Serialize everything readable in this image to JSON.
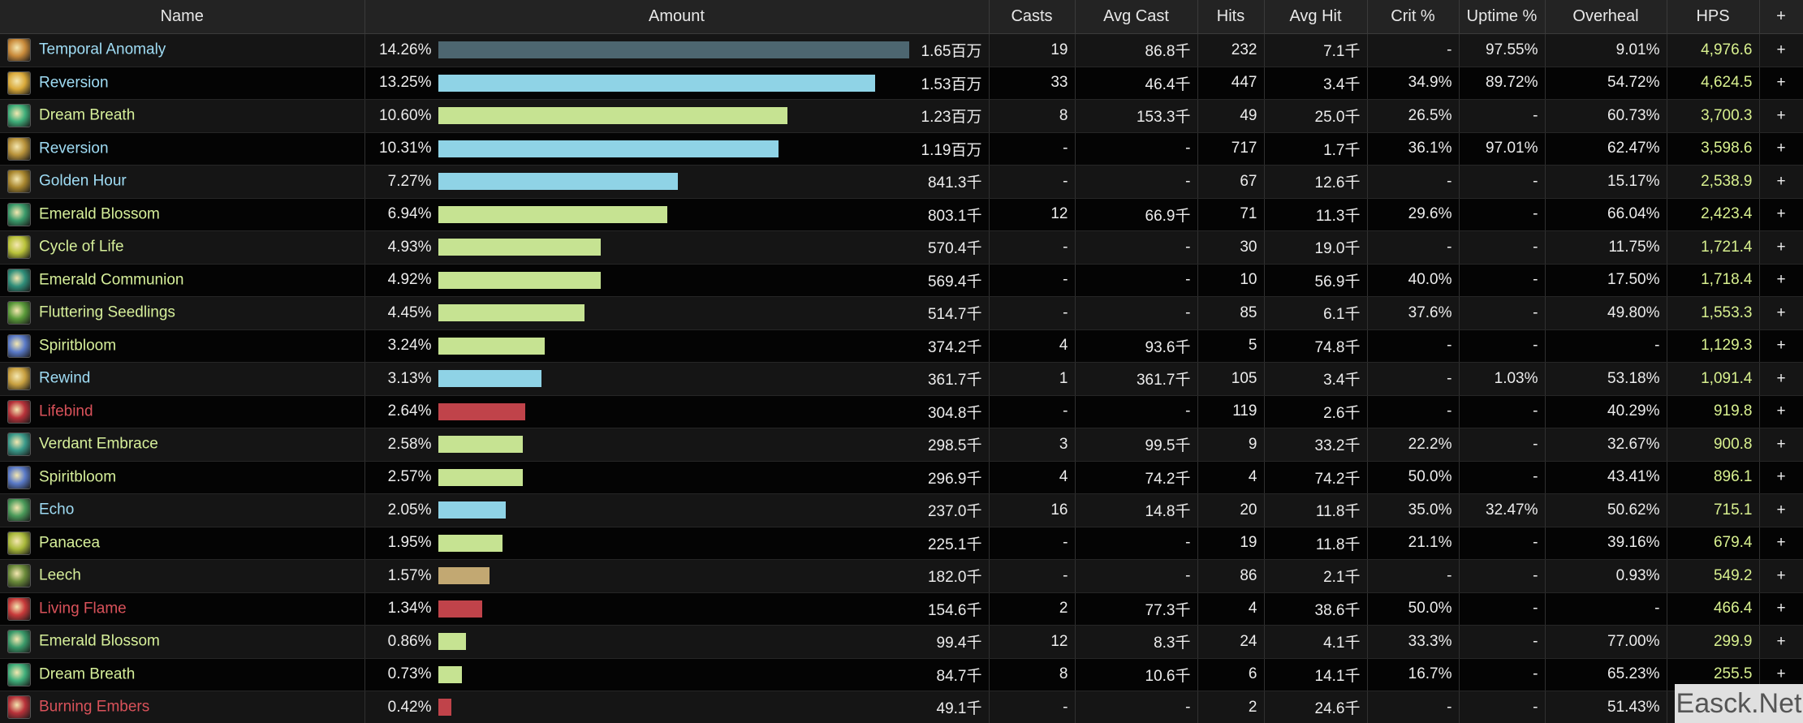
{
  "headers": {
    "name": "Name",
    "amount": "Amount",
    "casts": "Casts",
    "avg_cast": "Avg Cast",
    "hits": "Hits",
    "avg_hit": "Avg Hit",
    "crit": "Crit %",
    "uptime": "Uptime %",
    "overheal": "Overheal",
    "hps": "HPS",
    "add": "+"
  },
  "watermark": "Easck.Net",
  "colors": {
    "blue_name": "#9fdcf4",
    "green_name": "#d6ef9a",
    "red_name": "#d9525a",
    "bar_slate": "#4d6670",
    "bar_blue": "#8fd3e6",
    "bar_green": "#c6e392",
    "bar_red": "#c0434a",
    "bar_tan": "#c2a872",
    "hps_text": "#d8f08f"
  },
  "rows": [
    {
      "name": "Temporal Anomaly",
      "icon": "temporal-anomaly-icon",
      "icon_color": "#c98a3a",
      "name_color": "#9fdcf4",
      "bar_color": "#4d6670",
      "pct": "14.26%",
      "fraction": 1.0,
      "amount": "1.65百万",
      "casts": "19",
      "avg_cast": "86.8千",
      "hits": "232",
      "avg_hit": "7.1千",
      "crit": "-",
      "uptime": "97.55%",
      "overheal": "9.01%",
      "hps": "4,976.6",
      "plus": "+"
    },
    {
      "name": "Reversion",
      "icon": "reversion-icon",
      "icon_color": "#d9a93a",
      "name_color": "#9fdcf4",
      "bar_color": "#8fd3e6",
      "pct": "13.25%",
      "fraction": 0.929,
      "amount": "1.53百万",
      "casts": "33",
      "avg_cast": "46.4千",
      "hits": "447",
      "avg_hit": "3.4千",
      "crit": "34.9%",
      "uptime": "89.72%",
      "overheal": "54.72%",
      "hps": "4,624.5",
      "plus": "+"
    },
    {
      "name": "Dream Breath",
      "icon": "dream-breath-icon",
      "icon_color": "#3fae7a",
      "name_color": "#d6ef9a",
      "bar_color": "#c6e392",
      "pct": "10.60%",
      "fraction": 0.743,
      "amount": "1.23百万",
      "casts": "8",
      "avg_cast": "153.3千",
      "hits": "49",
      "avg_hit": "25.0千",
      "crit": "26.5%",
      "uptime": "-",
      "overheal": "60.73%",
      "hps": "3,700.3",
      "plus": "+"
    },
    {
      "name": "Reversion",
      "icon": "reversion-icon",
      "icon_color": "#b8923a",
      "name_color": "#9fdcf4",
      "bar_color": "#8fd3e6",
      "pct": "10.31%",
      "fraction": 0.723,
      "amount": "1.19百万",
      "casts": "-",
      "avg_cast": "-",
      "hits": "717",
      "avg_hit": "1.7千",
      "crit": "36.1%",
      "uptime": "97.01%",
      "overheal": "62.47%",
      "hps": "3,598.6",
      "plus": "+"
    },
    {
      "name": "Golden Hour",
      "icon": "golden-hour-icon",
      "icon_color": "#a8862e",
      "name_color": "#9fdcf4",
      "bar_color": "#8fd3e6",
      "pct": "7.27%",
      "fraction": 0.51,
      "amount": "841.3千",
      "casts": "-",
      "avg_cast": "-",
      "hits": "67",
      "avg_hit": "12.6千",
      "crit": "-",
      "uptime": "-",
      "overheal": "15.17%",
      "hps": "2,538.9",
      "plus": "+"
    },
    {
      "name": "Emerald Blossom",
      "icon": "emerald-blossom-icon",
      "icon_color": "#3a9a6a",
      "name_color": "#d6ef9a",
      "bar_color": "#c6e392",
      "pct": "6.94%",
      "fraction": 0.487,
      "amount": "803.1千",
      "casts": "12",
      "avg_cast": "66.9千",
      "hits": "71",
      "avg_hit": "11.3千",
      "crit": "29.6%",
      "uptime": "-",
      "overheal": "66.04%",
      "hps": "2,423.4",
      "plus": "+"
    },
    {
      "name": "Cycle of Life",
      "icon": "cycle-of-life-icon",
      "icon_color": "#b9c23a",
      "name_color": "#d6ef9a",
      "bar_color": "#c6e392",
      "pct": "4.93%",
      "fraction": 0.346,
      "amount": "570.4千",
      "casts": "-",
      "avg_cast": "-",
      "hits": "30",
      "avg_hit": "19.0千",
      "crit": "-",
      "uptime": "-",
      "overheal": "11.75%",
      "hps": "1,721.4",
      "plus": "+"
    },
    {
      "name": "Emerald Communion",
      "icon": "emerald-communion-icon",
      "icon_color": "#2f8e7a",
      "name_color": "#d6ef9a",
      "bar_color": "#c6e392",
      "pct": "4.92%",
      "fraction": 0.345,
      "amount": "569.4千",
      "casts": "-",
      "avg_cast": "-",
      "hits": "10",
      "avg_hit": "56.9千",
      "crit": "40.0%",
      "uptime": "-",
      "overheal": "17.50%",
      "hps": "1,718.4",
      "plus": "+"
    },
    {
      "name": "Fluttering Seedlings",
      "icon": "fluttering-seedlings-icon",
      "icon_color": "#5a9a3a",
      "name_color": "#d6ef9a",
      "bar_color": "#c6e392",
      "pct": "4.45%",
      "fraction": 0.312,
      "amount": "514.7千",
      "casts": "-",
      "avg_cast": "-",
      "hits": "85",
      "avg_hit": "6.1千",
      "crit": "37.6%",
      "uptime": "-",
      "overheal": "49.80%",
      "hps": "1,553.3",
      "plus": "+"
    },
    {
      "name": "Spiritbloom",
      "icon": "spiritbloom-icon",
      "icon_color": "#5a7ac8",
      "name_color": "#d6ef9a",
      "bar_color": "#c6e392",
      "pct": "3.24%",
      "fraction": 0.227,
      "amount": "374.2千",
      "casts": "4",
      "avg_cast": "93.6千",
      "hits": "5",
      "avg_hit": "74.8千",
      "crit": "-",
      "uptime": "-",
      "overheal": "-",
      "hps": "1,129.3",
      "plus": "+"
    },
    {
      "name": "Rewind",
      "icon": "rewind-icon",
      "icon_color": "#c8a040",
      "name_color": "#9fdcf4",
      "bar_color": "#8fd3e6",
      "pct": "3.13%",
      "fraction": 0.219,
      "amount": "361.7千",
      "casts": "1",
      "avg_cast": "361.7千",
      "hits": "105",
      "avg_hit": "3.4千",
      "crit": "-",
      "uptime": "1.03%",
      "overheal": "53.18%",
      "hps": "1,091.4",
      "plus": "+"
    },
    {
      "name": "Lifebind",
      "icon": "lifebind-icon",
      "icon_color": "#b8323a",
      "name_color": "#d9525a",
      "bar_color": "#c0434a",
      "pct": "2.64%",
      "fraction": 0.185,
      "amount": "304.8千",
      "casts": "-",
      "avg_cast": "-",
      "hits": "119",
      "avg_hit": "2.6千",
      "crit": "-",
      "uptime": "-",
      "overheal": "40.29%",
      "hps": "919.8",
      "plus": "+"
    },
    {
      "name": "Verdant Embrace",
      "icon": "verdant-embrace-icon",
      "icon_color": "#3a9a8a",
      "name_color": "#d6ef9a",
      "bar_color": "#c6e392",
      "pct": "2.58%",
      "fraction": 0.181,
      "amount": "298.5千",
      "casts": "3",
      "avg_cast": "99.5千",
      "hits": "9",
      "avg_hit": "33.2千",
      "crit": "22.2%",
      "uptime": "-",
      "overheal": "32.67%",
      "hps": "900.8",
      "plus": "+"
    },
    {
      "name": "Spiritbloom",
      "icon": "spiritbloom-icon",
      "icon_color": "#5a7ac8",
      "name_color": "#d6ef9a",
      "bar_color": "#c6e392",
      "pct": "2.57%",
      "fraction": 0.18,
      "amount": "296.9千",
      "casts": "4",
      "avg_cast": "74.2千",
      "hits": "4",
      "avg_hit": "74.2千",
      "crit": "50.0%",
      "uptime": "-",
      "overheal": "43.41%",
      "hps": "896.1",
      "plus": "+"
    },
    {
      "name": "Echo",
      "icon": "echo-icon",
      "icon_color": "#4a9a5a",
      "name_color": "#9fdcf4",
      "bar_color": "#8fd3e6",
      "pct": "2.05%",
      "fraction": 0.144,
      "amount": "237.0千",
      "casts": "16",
      "avg_cast": "14.8千",
      "hits": "20",
      "avg_hit": "11.8千",
      "crit": "35.0%",
      "uptime": "32.47%",
      "overheal": "50.62%",
      "hps": "715.1",
      "plus": "+"
    },
    {
      "name": "Panacea",
      "icon": "panacea-icon",
      "icon_color": "#a8b83a",
      "name_color": "#d6ef9a",
      "bar_color": "#c6e392",
      "pct": "1.95%",
      "fraction": 0.137,
      "amount": "225.1千",
      "casts": "-",
      "avg_cast": "-",
      "hits": "19",
      "avg_hit": "11.8千",
      "crit": "21.1%",
      "uptime": "-",
      "overheal": "39.16%",
      "hps": "679.4",
      "plus": "+"
    },
    {
      "name": "Leech",
      "icon": "leech-icon",
      "icon_color": "#6a8a3a",
      "name_color": "#d6ef9a",
      "bar_color": "#c2a872",
      "pct": "1.57%",
      "fraction": 0.11,
      "amount": "182.0千",
      "casts": "-",
      "avg_cast": "-",
      "hits": "86",
      "avg_hit": "2.1千",
      "crit": "-",
      "uptime": "-",
      "overheal": "0.93%",
      "hps": "549.2",
      "plus": "+"
    },
    {
      "name": "Living Flame",
      "icon": "living-flame-icon",
      "icon_color": "#c83a3a",
      "name_color": "#d9525a",
      "bar_color": "#c0434a",
      "pct": "1.34%",
      "fraction": 0.094,
      "amount": "154.6千",
      "casts": "2",
      "avg_cast": "77.3千",
      "hits": "4",
      "avg_hit": "38.6千",
      "crit": "50.0%",
      "uptime": "-",
      "overheal": "-",
      "hps": "466.4",
      "plus": "+"
    },
    {
      "name": "Emerald Blossom",
      "icon": "emerald-blossom-icon",
      "icon_color": "#3a9a6a",
      "name_color": "#d6ef9a",
      "bar_color": "#c6e392",
      "pct": "0.86%",
      "fraction": 0.06,
      "amount": "99.4千",
      "casts": "12",
      "avg_cast": "8.3千",
      "hits": "24",
      "avg_hit": "4.1千",
      "crit": "33.3%",
      "uptime": "-",
      "overheal": "77.00%",
      "hps": "299.9",
      "plus": "+"
    },
    {
      "name": "Dream Breath",
      "icon": "dream-breath-icon",
      "icon_color": "#3fae7a",
      "name_color": "#d6ef9a",
      "bar_color": "#c6e392",
      "pct": "0.73%",
      "fraction": 0.051,
      "amount": "84.7千",
      "casts": "8",
      "avg_cast": "10.6千",
      "hits": "6",
      "avg_hit": "14.1千",
      "crit": "16.7%",
      "uptime": "-",
      "overheal": "65.23%",
      "hps": "255.5",
      "plus": "+"
    },
    {
      "name": "Burning Embers",
      "icon": "burning-embers-icon",
      "icon_color": "#b8323a",
      "name_color": "#d9525a",
      "bar_color": "#c0434a",
      "pct": "0.42%",
      "fraction": 0.029,
      "amount": "49.1千",
      "casts": "-",
      "avg_cast": "-",
      "hits": "2",
      "avg_hit": "24.6千",
      "crit": "-",
      "uptime": "-",
      "overheal": "51.43%",
      "hps": "",
      "plus": "+"
    }
  ]
}
